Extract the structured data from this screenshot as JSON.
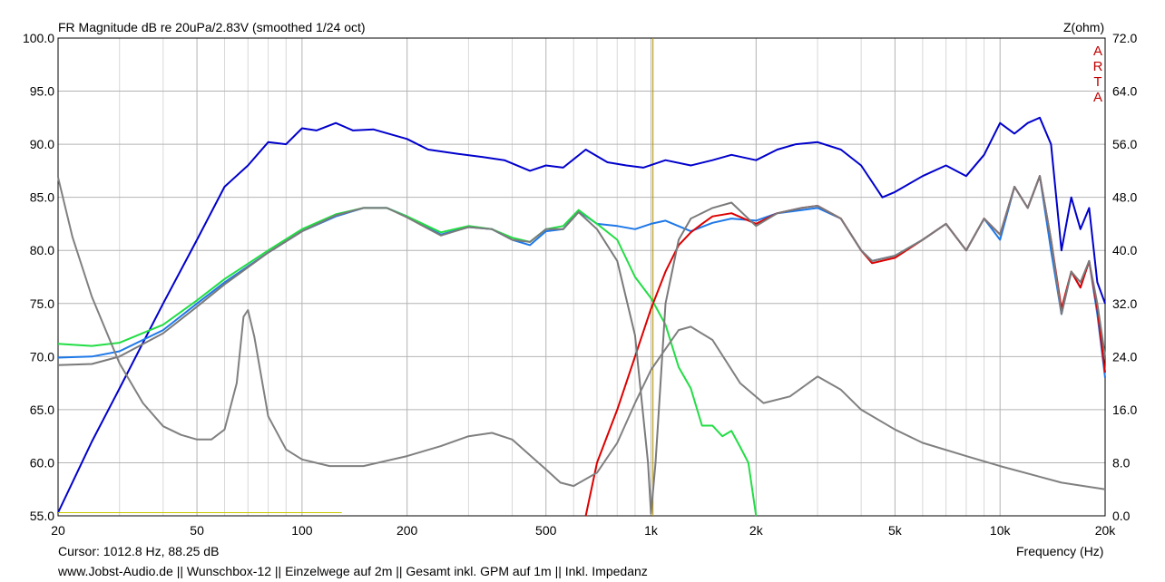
{
  "window": {
    "title": "FR Magnitude dB re 20uPa/2.83V (smoothed 1/24 oct)",
    "right_axis_title": "Z(ohm)",
    "watermark_letters": [
      "A",
      "R",
      "T",
      "A"
    ],
    "cursor_readout": "Cursor: 1012.8 Hz, 88.25 dB",
    "footer": "www.Jobst-Audio.de  || Wunschbox-12  ||  Einzelwege auf 2m  ||  Gesamt inkl. GPM auf 1m  ||  Inkl. Impedanz"
  },
  "chart_data": {
    "type": "line",
    "title": "FR Magnitude dB re 20uPa/2.83V (smoothed 1/24 oct)",
    "xlabel": "Frequency (Hz)",
    "ylabel": "",
    "y2label": "Z(ohm)",
    "x_scale": "log",
    "xlim": [
      20,
      20000
    ],
    "ylim": [
      55,
      100
    ],
    "y2lim": [
      0,
      72
    ],
    "grid": true,
    "legend": "none",
    "x_ticks": [
      20,
      50,
      100,
      200,
      500,
      1000,
      2000,
      5000,
      10000,
      20000
    ],
    "x_tick_labels": [
      "20",
      "50",
      "100",
      "200",
      "500",
      "1k",
      "2k",
      "5k",
      "10k",
      "20k"
    ],
    "y_ticks": [
      55,
      60,
      65,
      70,
      75,
      80,
      85,
      90,
      95,
      100
    ],
    "y_tick_labels": [
      "55.0",
      "60.0",
      "65.0",
      "70.0",
      "75.0",
      "80.0",
      "85.0",
      "90.0",
      "95.0",
      "100.0"
    ],
    "y2_ticks": [
      0,
      8,
      16,
      24,
      32,
      40,
      48,
      56,
      64,
      72
    ],
    "y2_tick_labels": [
      "0.0",
      "8.0",
      "16.0",
      "24.0",
      "32.0",
      "40.0",
      "48.0",
      "56.0",
      "64.0",
      "72.0"
    ],
    "cursor": {
      "x": 1012.8,
      "y": 88.25
    },
    "series": [
      {
        "axis": "left",
        "color": "#0000cc",
        "width": 2,
        "points": [
          [
            20,
            55.3
          ],
          [
            25,
            62
          ],
          [
            30,
            67
          ],
          [
            40,
            75
          ],
          [
            50,
            81
          ],
          [
            60,
            86
          ],
          [
            70,
            88
          ],
          [
            80,
            90.2
          ],
          [
            90,
            90
          ],
          [
            100,
            91.5
          ],
          [
            110,
            91.3
          ],
          [
            125,
            92
          ],
          [
            140,
            91.3
          ],
          [
            160,
            91.4
          ],
          [
            200,
            90.5
          ],
          [
            230,
            89.5
          ],
          [
            280,
            89.1
          ],
          [
            330,
            88.8
          ],
          [
            380,
            88.5
          ],
          [
            450,
            87.5
          ],
          [
            500,
            88
          ],
          [
            560,
            87.8
          ],
          [
            650,
            89.5
          ],
          [
            750,
            88.3
          ],
          [
            850,
            88
          ],
          [
            950,
            87.8
          ],
          [
            1100,
            88.5
          ],
          [
            1300,
            88
          ],
          [
            1500,
            88.5
          ],
          [
            1700,
            89
          ],
          [
            2000,
            88.5
          ],
          [
            2300,
            89.5
          ],
          [
            2600,
            90
          ],
          [
            3000,
            90.2
          ],
          [
            3500,
            89.5
          ],
          [
            4000,
            88
          ],
          [
            4600,
            85
          ],
          [
            5000,
            85.5
          ],
          [
            6000,
            87
          ],
          [
            7000,
            88
          ],
          [
            8000,
            87
          ],
          [
            9000,
            89
          ],
          [
            10000,
            92
          ],
          [
            11000,
            91
          ],
          [
            12000,
            92
          ],
          [
            13000,
            92.5
          ],
          [
            14000,
            90
          ],
          [
            15000,
            80
          ],
          [
            16000,
            85
          ],
          [
            17000,
            82
          ],
          [
            18000,
            84
          ],
          [
            19000,
            77
          ],
          [
            20000,
            75
          ]
        ]
      },
      {
        "axis": "left",
        "color": "#1e78e8",
        "width": 2,
        "points": [
          [
            20,
            69.9
          ],
          [
            25,
            70
          ],
          [
            30,
            70.5
          ],
          [
            40,
            72.5
          ],
          [
            50,
            75
          ],
          [
            60,
            77
          ],
          [
            80,
            79.8
          ],
          [
            100,
            81.8
          ],
          [
            125,
            83.2
          ],
          [
            150,
            84
          ],
          [
            175,
            84
          ],
          [
            200,
            83.2
          ],
          [
            250,
            81.5
          ],
          [
            300,
            82.2
          ],
          [
            350,
            82
          ],
          [
            400,
            81
          ],
          [
            450,
            80.5
          ],
          [
            500,
            81.8
          ],
          [
            560,
            82
          ],
          [
            620,
            83.7
          ],
          [
            700,
            82.5
          ],
          [
            800,
            82.3
          ],
          [
            900,
            82
          ],
          [
            1000,
            82.5
          ],
          [
            1100,
            82.8
          ],
          [
            1300,
            81.8
          ],
          [
            1500,
            82.6
          ],
          [
            1700,
            83
          ],
          [
            2000,
            82.8
          ],
          [
            2300,
            83.5
          ],
          [
            2700,
            83.8
          ],
          [
            3000,
            84
          ],
          [
            3500,
            83
          ],
          [
            4000,
            80
          ],
          [
            4300,
            79
          ],
          [
            5000,
            79.5
          ],
          [
            6000,
            81
          ],
          [
            7000,
            82.5
          ],
          [
            8000,
            80
          ],
          [
            9000,
            83
          ],
          [
            10000,
            81
          ],
          [
            11000,
            86
          ],
          [
            12000,
            84
          ],
          [
            13000,
            87
          ],
          [
            14000,
            80
          ],
          [
            15000,
            74
          ],
          [
            16000,
            78
          ],
          [
            17000,
            76.5
          ],
          [
            18000,
            79
          ],
          [
            19000,
            74
          ],
          [
            20000,
            68
          ]
        ]
      },
      {
        "axis": "left",
        "color": "#22dd44",
        "width": 2,
        "points": [
          [
            20,
            71.2
          ],
          [
            25,
            71
          ],
          [
            30,
            71.3
          ],
          [
            40,
            73
          ],
          [
            50,
            75.3
          ],
          [
            60,
            77.3
          ],
          [
            80,
            80
          ],
          [
            100,
            82
          ],
          [
            125,
            83.4
          ],
          [
            150,
            84
          ],
          [
            175,
            84
          ],
          [
            200,
            83.2
          ],
          [
            250,
            81.7
          ],
          [
            300,
            82.3
          ],
          [
            350,
            82
          ],
          [
            400,
            81.2
          ],
          [
            450,
            80.8
          ],
          [
            500,
            82
          ],
          [
            560,
            82.3
          ],
          [
            620,
            83.8
          ],
          [
            700,
            82.5
          ],
          [
            800,
            81
          ],
          [
            900,
            77.5
          ],
          [
            1000,
            75.5
          ],
          [
            1100,
            73
          ],
          [
            1200,
            69
          ],
          [
            1300,
            67
          ],
          [
            1400,
            63.5
          ],
          [
            1500,
            63.5
          ],
          [
            1600,
            62.5
          ],
          [
            1700,
            63
          ],
          [
            1800,
            61.5
          ],
          [
            1900,
            60
          ],
          [
            2000,
            55
          ]
        ]
      },
      {
        "axis": "left",
        "color": "#dd0000",
        "width": 2,
        "points": [
          [
            650,
            55
          ],
          [
            700,
            60
          ],
          [
            800,
            65
          ],
          [
            900,
            70
          ],
          [
            1000,
            74.5
          ],
          [
            1100,
            78
          ],
          [
            1200,
            80.5
          ],
          [
            1300,
            81.7
          ],
          [
            1400,
            82.5
          ],
          [
            1500,
            83.2
          ],
          [
            1700,
            83.5
          ],
          [
            2000,
            82.5
          ],
          [
            2300,
            83.5
          ],
          [
            2700,
            84
          ],
          [
            3000,
            84.2
          ],
          [
            3500,
            83
          ],
          [
            4000,
            80
          ],
          [
            4300,
            78.8
          ],
          [
            5000,
            79.3
          ],
          [
            6000,
            81
          ],
          [
            7000,
            82.5
          ],
          [
            8000,
            80
          ],
          [
            9000,
            83
          ],
          [
            10000,
            81.5
          ],
          [
            11000,
            86
          ],
          [
            12000,
            84
          ],
          [
            13000,
            87
          ],
          [
            14000,
            81
          ],
          [
            15000,
            74.5
          ],
          [
            16000,
            78
          ],
          [
            17000,
            76.5
          ],
          [
            18000,
            79
          ],
          [
            19000,
            74.5
          ],
          [
            20000,
            68.5
          ]
        ]
      },
      {
        "axis": "left",
        "color": "#7a7a7a",
        "width": 2,
        "points": [
          [
            20,
            69.2
          ],
          [
            25,
            69.3
          ],
          [
            30,
            70
          ],
          [
            40,
            72.2
          ],
          [
            50,
            74.7
          ],
          [
            60,
            76.8
          ],
          [
            80,
            79.8
          ],
          [
            100,
            81.8
          ],
          [
            125,
            83.3
          ],
          [
            150,
            84
          ],
          [
            175,
            84
          ],
          [
            200,
            83.1
          ],
          [
            250,
            81.4
          ],
          [
            300,
            82.2
          ],
          [
            350,
            82
          ],
          [
            400,
            81
          ],
          [
            450,
            80.8
          ],
          [
            500,
            82
          ],
          [
            560,
            82
          ],
          [
            620,
            83.6
          ],
          [
            700,
            82
          ],
          [
            800,
            79
          ],
          [
            900,
            72
          ],
          [
            980,
            60
          ],
          [
            1000,
            55.2
          ],
          [
            1030,
            60
          ],
          [
            1100,
            75
          ],
          [
            1200,
            81
          ],
          [
            1300,
            83
          ],
          [
            1500,
            84
          ],
          [
            1700,
            84.5
          ],
          [
            2000,
            82.3
          ],
          [
            2300,
            83.5
          ],
          [
            2700,
            84
          ],
          [
            3000,
            84.2
          ],
          [
            3500,
            83
          ],
          [
            4000,
            80
          ],
          [
            4300,
            79
          ],
          [
            5000,
            79.5
          ],
          [
            6000,
            81
          ],
          [
            7000,
            82.5
          ],
          [
            8000,
            80
          ],
          [
            9000,
            83
          ],
          [
            10000,
            81.5
          ],
          [
            11000,
            86
          ],
          [
            12000,
            84
          ],
          [
            13000,
            87
          ],
          [
            14000,
            81
          ],
          [
            15000,
            74
          ],
          [
            16000,
            78
          ],
          [
            17000,
            77
          ],
          [
            18000,
            79
          ],
          [
            19000,
            75
          ],
          [
            20000,
            70
          ]
        ]
      },
      {
        "axis": "right",
        "color": "#808080",
        "width": 2,
        "points": [
          [
            20,
            51
          ],
          [
            22,
            42
          ],
          [
            25,
            33
          ],
          [
            30,
            23
          ],
          [
            35,
            17
          ],
          [
            40,
            13.5
          ],
          [
            45,
            12.2
          ],
          [
            50,
            11.5
          ],
          [
            55,
            11.5
          ],
          [
            60,
            13
          ],
          [
            65,
            20
          ],
          [
            68,
            30
          ],
          [
            70,
            31
          ],
          [
            73,
            27
          ],
          [
            80,
            15
          ],
          [
            90,
            10
          ],
          [
            100,
            8.5
          ],
          [
            120,
            7.5
          ],
          [
            150,
            7.5
          ],
          [
            200,
            9
          ],
          [
            250,
            10.5
          ],
          [
            300,
            12
          ],
          [
            350,
            12.5
          ],
          [
            400,
            11.5
          ],
          [
            500,
            7
          ],
          [
            550,
            5
          ],
          [
            600,
            4.5
          ],
          [
            700,
            6.5
          ],
          [
            800,
            11
          ],
          [
            900,
            17
          ],
          [
            1000,
            22
          ],
          [
            1200,
            28
          ],
          [
            1300,
            28.5
          ],
          [
            1500,
            26.5
          ],
          [
            1800,
            20
          ],
          [
            2100,
            17
          ],
          [
            2500,
            18
          ],
          [
            3000,
            21
          ],
          [
            3500,
            19
          ],
          [
            4000,
            16
          ],
          [
            5000,
            13
          ],
          [
            6000,
            11
          ],
          [
            8000,
            9
          ],
          [
            10000,
            7.5
          ],
          [
            15000,
            5
          ],
          [
            20000,
            4
          ]
        ]
      },
      {
        "axis": "left",
        "color": "#c8c800",
        "width": 1,
        "points": [
          [
            20,
            55.3
          ],
          [
            130,
            55.3
          ]
        ]
      }
    ]
  }
}
